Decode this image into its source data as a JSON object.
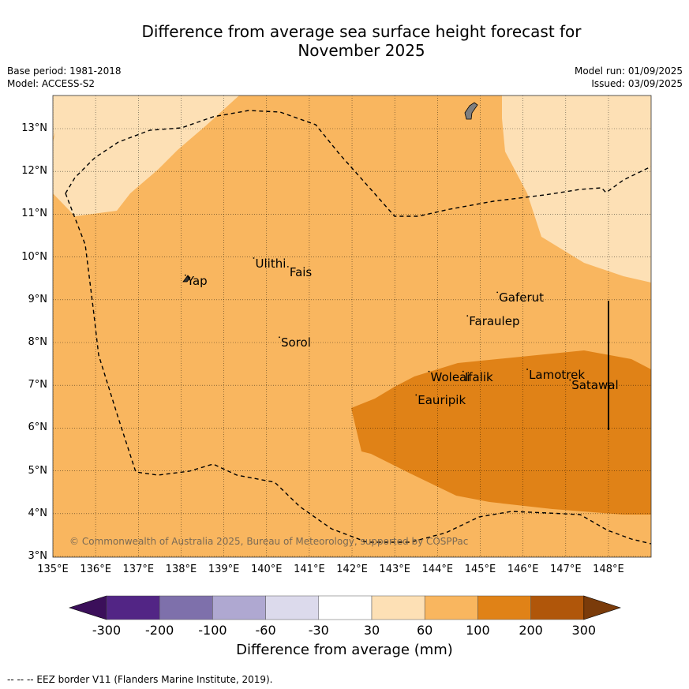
{
  "title": {
    "line1": "Difference from average sea surface height forecast for",
    "line2": "November 2025"
  },
  "meta": {
    "base_period": "Base period: 1981-2018",
    "model": "Model: ACCESS-S2",
    "model_run": "Model run: 01/09/2025",
    "issued": "Issued: 03/09/2025"
  },
  "map": {
    "lat_labels": [
      "13°N",
      "12°N",
      "11°N",
      "10°N",
      "9°N",
      "8°N",
      "7°N",
      "6°N",
      "5°N",
      "4°N",
      "3°N"
    ],
    "lon_labels": [
      "135°E",
      "136°E",
      "137°E",
      "138°E",
      "139°E",
      "140°E",
      "141°E",
      "142°E",
      "143°E",
      "144°E",
      "145°E",
      "146°E",
      "147°E",
      "148°E"
    ],
    "lat_values": [
      13,
      12,
      11,
      10,
      9,
      8,
      7,
      6,
      5,
      4,
      3
    ],
    "lon_values": [
      135,
      136,
      137,
      138,
      139,
      140,
      141,
      142,
      143,
      144,
      145,
      146,
      147,
      148
    ],
    "extent": {
      "lon_min": 135,
      "lon_max": 149,
      "lat_min": 3,
      "lat_max": 13.8
    },
    "places": [
      {
        "name": "Ulithi",
        "lon": 139.7,
        "lat": 9.9
      },
      {
        "name": "Fais",
        "lon": 140.5,
        "lat": 9.7
      },
      {
        "name": "Yap",
        "lon": 138.1,
        "lat": 9.5
      },
      {
        "name": "Gaferut",
        "lon": 145.4,
        "lat": 9.1
      },
      {
        "name": "Faraulep",
        "lon": 144.7,
        "lat": 8.55
      },
      {
        "name": "Sorol",
        "lon": 140.3,
        "lat": 8.05
      },
      {
        "name": "Lamotrek",
        "lon": 146.1,
        "lat": 7.3
      },
      {
        "name": "Woleai",
        "lon": 143.8,
        "lat": 7.25
      },
      {
        "name": "Ifalik",
        "lon": 144.6,
        "lat": 7.25
      },
      {
        "name": "Satawal",
        "lon": 147.1,
        "lat": 7.05
      },
      {
        "name": "Eauripik",
        "lon": 143.5,
        "lat": 6.7
      }
    ],
    "copyright": "© Commonwealth of Australia 2025, Bureau of Meteorology, supported by COSPPac",
    "colors": {
      "bin_30_60": "#fde0b5",
      "bin_60_100": "#f9b65f",
      "bin_100_200": "#e08217",
      "land": "#7f7f7f"
    }
  },
  "colorbar": {
    "ticks": [
      "-300",
      "-200",
      "-100",
      "-60",
      "-30",
      "30",
      "60",
      "100",
      "200",
      "300"
    ],
    "colors": [
      "#3b0f5a",
      "#522585",
      "#7e70ab",
      "#afa8d1",
      "#dcdaec",
      "#ffffff",
      "#fde0b5",
      "#f9b65f",
      "#e08217",
      "#b0560a",
      "#7a3b0a"
    ],
    "title": "Difference from average (mm)"
  },
  "footer": "--  --  -- EEZ border V11 (Flanders Marine Institute, 2019)."
}
